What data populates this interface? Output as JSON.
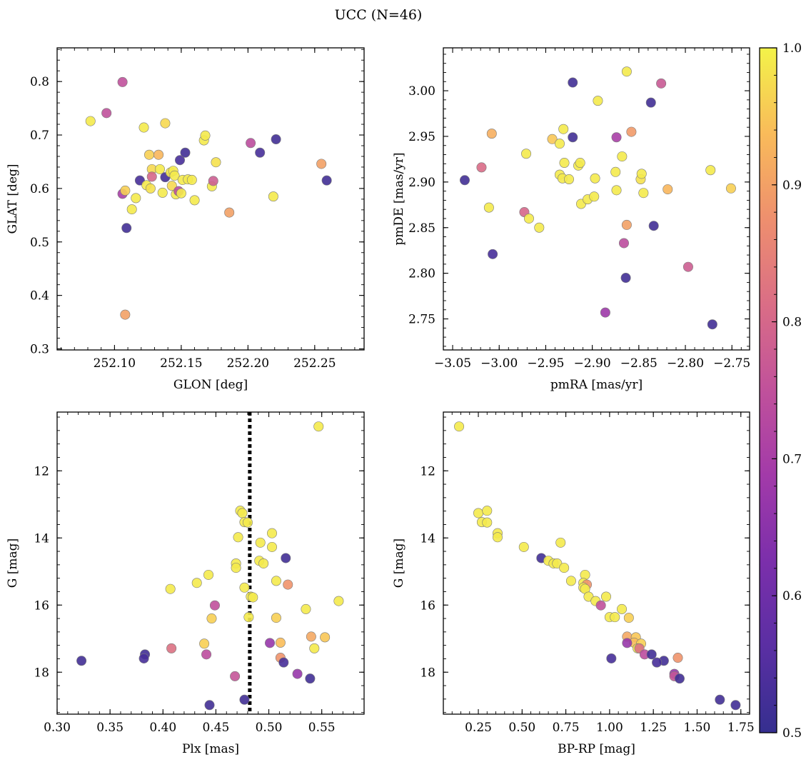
{
  "figure": {
    "title": "UCC (N=46)",
    "colorbar": {
      "range": [
        0.5,
        1.0
      ],
      "ticks": [
        "0.5",
        "0.6",
        "0.7",
        "0.8",
        "0.9",
        "1.0"
      ]
    }
  },
  "chart_data": [
    {
      "type": "scatter",
      "title": "",
      "xlabel": "GLON [deg]",
      "ylabel": "GLAT [deg]",
      "xlim": [
        252.057,
        252.287
      ],
      "ylim": [
        0.298,
        0.863
      ],
      "invert_y": false,
      "xticks": [
        252.1,
        252.15,
        252.2,
        252.25
      ],
      "xtick_labels": [
        "252.10",
        "252.15",
        "252.20",
        "252.25"
      ],
      "yticks": [
        0.3,
        0.4,
        0.5,
        0.6,
        0.7,
        0.8
      ],
      "ytick_labels": [
        "0.3",
        "0.4",
        "0.5",
        "0.6",
        "0.7",
        "0.8"
      ],
      "points": [
        {
          "x": 252.082,
          "y": 0.726,
          "c": 0.99
        },
        {
          "x": 252.094,
          "y": 0.741,
          "c": 0.75
        },
        {
          "x": 252.106,
          "y": 0.799,
          "c": 0.75
        },
        {
          "x": 252.106,
          "y": 0.59,
          "c": 0.7
        },
        {
          "x": 252.108,
          "y": 0.596,
          "c": 0.96
        },
        {
          "x": 252.108,
          "y": 0.364,
          "c": 0.9
        },
        {
          "x": 252.109,
          "y": 0.526,
          "c": 0.52
        },
        {
          "x": 252.113,
          "y": 0.561,
          "c": 0.99
        },
        {
          "x": 252.116,
          "y": 0.582,
          "c": 0.99
        },
        {
          "x": 252.119,
          "y": 0.615,
          "c": 0.53
        },
        {
          "x": 252.122,
          "y": 0.714,
          "c": 0.99
        },
        {
          "x": 252.124,
          "y": 0.606,
          "c": 0.99
        },
        {
          "x": 252.126,
          "y": 0.663,
          "c": 0.96
        },
        {
          "x": 252.127,
          "y": 0.6,
          "c": 0.98
        },
        {
          "x": 252.128,
          "y": 0.636,
          "c": 0.97
        },
        {
          "x": 252.128,
          "y": 0.622,
          "c": 0.8
        },
        {
          "x": 252.133,
          "y": 0.663,
          "c": 0.93
        },
        {
          "x": 252.134,
          "y": 0.636,
          "c": 0.99
        },
        {
          "x": 252.136,
          "y": 0.592,
          "c": 0.99
        },
        {
          "x": 252.138,
          "y": 0.722,
          "c": 0.97
        },
        {
          "x": 252.138,
          "y": 0.621,
          "c": 0.52
        },
        {
          "x": 252.142,
          "y": 0.63,
          "c": 0.99
        },
        {
          "x": 252.143,
          "y": 0.605,
          "c": 0.97
        },
        {
          "x": 252.144,
          "y": 0.633,
          "c": 0.99
        },
        {
          "x": 252.145,
          "y": 0.624,
          "c": 0.99
        },
        {
          "x": 252.146,
          "y": 0.589,
          "c": 0.99
        },
        {
          "x": 252.148,
          "y": 0.595,
          "c": 0.74
        },
        {
          "x": 252.149,
          "y": 0.653,
          "c": 0.53
        },
        {
          "x": 252.15,
          "y": 0.591,
          "c": 0.99
        },
        {
          "x": 252.151,
          "y": 0.616,
          "c": 0.99
        },
        {
          "x": 252.153,
          "y": 0.667,
          "c": 0.52
        },
        {
          "x": 252.155,
          "y": 0.617,
          "c": 0.99
        },
        {
          "x": 252.158,
          "y": 0.616,
          "c": 0.99
        },
        {
          "x": 252.16,
          "y": 0.578,
          "c": 0.99
        },
        {
          "x": 252.167,
          "y": 0.69,
          "c": 0.99
        },
        {
          "x": 252.168,
          "y": 0.699,
          "c": 0.99
        },
        {
          "x": 252.173,
          "y": 0.604,
          "c": 0.99
        },
        {
          "x": 252.174,
          "y": 0.614,
          "c": 0.78
        },
        {
          "x": 252.176,
          "y": 0.649,
          "c": 0.98
        },
        {
          "x": 252.186,
          "y": 0.555,
          "c": 0.9
        },
        {
          "x": 252.202,
          "y": 0.685,
          "c": 0.74
        },
        {
          "x": 252.209,
          "y": 0.667,
          "c": 0.53
        },
        {
          "x": 252.219,
          "y": 0.585,
          "c": 0.99
        },
        {
          "x": 252.221,
          "y": 0.692,
          "c": 0.52
        },
        {
          "x": 252.255,
          "y": 0.646,
          "c": 0.9
        },
        {
          "x": 252.259,
          "y": 0.615,
          "c": 0.52
        }
      ]
    },
    {
      "type": "scatter",
      "title": "",
      "xlabel": "pmRA [mas/yr]",
      "ylabel": "pmDE [mas/yr]",
      "xlim": [
        -3.06,
        -2.731
      ],
      "ylim": [
        2.716,
        3.047
      ],
      "invert_y": false,
      "xticks": [
        -3.05,
        -3.0,
        -2.95,
        -2.9,
        -2.85,
        -2.8,
        -2.75
      ],
      "xtick_labels": [
        "−3.05",
        "−3.00",
        "−2.95",
        "−2.90",
        "−2.85",
        "−2.80",
        "−2.75"
      ],
      "yticks": [
        2.75,
        2.8,
        2.85,
        2.9,
        2.95,
        3.0
      ],
      "ytick_labels": [
        "2.75",
        "2.80",
        "2.85",
        "2.90",
        "2.95",
        "3.00"
      ],
      "points": [
        {
          "x": -3.037,
          "y": 2.902,
          "c": 0.52
        },
        {
          "x": -3.019,
          "y": 2.916,
          "c": 0.81
        },
        {
          "x": -3.008,
          "y": 2.953,
          "c": 0.92
        },
        {
          "x": -3.011,
          "y": 2.872,
          "c": 0.99
        },
        {
          "x": -3.007,
          "y": 2.821,
          "c": 0.53
        },
        {
          "x": -2.973,
          "y": 2.867,
          "c": 0.8
        },
        {
          "x": -2.971,
          "y": 2.931,
          "c": 0.99
        },
        {
          "x": -2.968,
          "y": 2.86,
          "c": 0.99
        },
        {
          "x": -2.957,
          "y": 2.85,
          "c": 0.99
        },
        {
          "x": -2.943,
          "y": 2.947,
          "c": 0.95
        },
        {
          "x": -2.935,
          "y": 2.942,
          "c": 0.99
        },
        {
          "x": -2.935,
          "y": 2.908,
          "c": 0.99
        },
        {
          "x": -2.932,
          "y": 2.904,
          "c": 0.99
        },
        {
          "x": -2.931,
          "y": 2.958,
          "c": 0.99
        },
        {
          "x": -2.93,
          "y": 2.921,
          "c": 0.99
        },
        {
          "x": -2.925,
          "y": 2.903,
          "c": 0.99
        },
        {
          "x": -2.921,
          "y": 3.009,
          "c": 0.52
        },
        {
          "x": -2.921,
          "y": 2.949,
          "c": 0.52
        },
        {
          "x": -2.915,
          "y": 2.918,
          "c": 0.99
        },
        {
          "x": -2.913,
          "y": 2.921,
          "c": 0.99
        },
        {
          "x": -2.912,
          "y": 2.876,
          "c": 0.99
        },
        {
          "x": -2.905,
          "y": 2.881,
          "c": 0.99
        },
        {
          "x": -2.898,
          "y": 2.884,
          "c": 0.99
        },
        {
          "x": -2.897,
          "y": 2.904,
          "c": 0.99
        },
        {
          "x": -2.894,
          "y": 2.989,
          "c": 0.99
        },
        {
          "x": -2.886,
          "y": 2.757,
          "c": 0.68
        },
        {
          "x": -2.875,
          "y": 2.911,
          "c": 0.99
        },
        {
          "x": -2.874,
          "y": 2.891,
          "c": 0.99
        },
        {
          "x": -2.874,
          "y": 2.949,
          "c": 0.7
        },
        {
          "x": -2.868,
          "y": 2.928,
          "c": 0.99
        },
        {
          "x": -2.866,
          "y": 2.833,
          "c": 0.74
        },
        {
          "x": -2.864,
          "y": 2.795,
          "c": 0.52
        },
        {
          "x": -2.863,
          "y": 2.853,
          "c": 0.9
        },
        {
          "x": -2.863,
          "y": 3.021,
          "c": 0.99
        },
        {
          "x": -2.858,
          "y": 2.955,
          "c": 0.89
        },
        {
          "x": -2.848,
          "y": 2.903,
          "c": 0.98
        },
        {
          "x": -2.847,
          "y": 2.909,
          "c": 0.99
        },
        {
          "x": -2.845,
          "y": 2.888,
          "c": 0.99
        },
        {
          "x": -2.837,
          "y": 2.987,
          "c": 0.52
        },
        {
          "x": -2.834,
          "y": 2.852,
          "c": 0.52
        },
        {
          "x": -2.826,
          "y": 3.008,
          "c": 0.77
        },
        {
          "x": -2.819,
          "y": 2.892,
          "c": 0.93
        },
        {
          "x": -2.797,
          "y": 2.807,
          "c": 0.78
        },
        {
          "x": -2.773,
          "y": 2.913,
          "c": 0.99
        },
        {
          "x": -2.771,
          "y": 2.744,
          "c": 0.52
        },
        {
          "x": -2.751,
          "y": 2.893,
          "c": 0.96
        }
      ]
    },
    {
      "type": "scatter",
      "title": "",
      "xlabel": "Plx [mas]",
      "ylabel": "G [mag]",
      "xlim": [
        0.3,
        0.59
      ],
      "ylim": [
        10.25,
        19.25
      ],
      "invert_y": true,
      "xticks": [
        0.3,
        0.35,
        0.4,
        0.45,
        0.5,
        0.55
      ],
      "xtick_labels": [
        "0.30",
        "0.35",
        "0.40",
        "0.45",
        "0.50",
        "0.55"
      ],
      "yticks": [
        12,
        14,
        16,
        18
      ],
      "ytick_labels": [
        "12",
        "14",
        "16",
        "18"
      ],
      "vline": 0.482,
      "points": [
        {
          "x": 0.547,
          "y": 10.68,
          "c": 0.99
        },
        {
          "x": 0.473,
          "y": 13.19,
          "c": 0.99
        },
        {
          "x": 0.475,
          "y": 13.26,
          "c": 0.99
        },
        {
          "x": 0.477,
          "y": 13.53,
          "c": 0.99
        },
        {
          "x": 0.48,
          "y": 13.54,
          "c": 0.99
        },
        {
          "x": 0.471,
          "y": 13.98,
          "c": 0.99
        },
        {
          "x": 0.503,
          "y": 13.86,
          "c": 0.99
        },
        {
          "x": 0.492,
          "y": 14.14,
          "c": 0.99
        },
        {
          "x": 0.503,
          "y": 14.27,
          "c": 0.99
        },
        {
          "x": 0.516,
          "y": 14.6,
          "c": 0.52
        },
        {
          "x": 0.469,
          "y": 14.76,
          "c": 0.99
        },
        {
          "x": 0.469,
          "y": 14.89,
          "c": 0.99
        },
        {
          "x": 0.491,
          "y": 14.68,
          "c": 0.99
        },
        {
          "x": 0.495,
          "y": 14.76,
          "c": 0.99
        },
        {
          "x": 0.443,
          "y": 15.1,
          "c": 0.99
        },
        {
          "x": 0.432,
          "y": 15.34,
          "c": 0.99
        },
        {
          "x": 0.407,
          "y": 15.52,
          "c": 0.99
        },
        {
          "x": 0.518,
          "y": 15.39,
          "c": 0.88
        },
        {
          "x": 0.507,
          "y": 15.28,
          "c": 0.99
        },
        {
          "x": 0.477,
          "y": 15.48,
          "c": 0.99
        },
        {
          "x": 0.483,
          "y": 15.75,
          "c": 0.99
        },
        {
          "x": 0.485,
          "y": 15.77,
          "c": 0.99
        },
        {
          "x": 0.449,
          "y": 16.01,
          "c": 0.75
        },
        {
          "x": 0.446,
          "y": 16.4,
          "c": 0.96
        },
        {
          "x": 0.481,
          "y": 16.36,
          "c": 0.99
        },
        {
          "x": 0.507,
          "y": 16.38,
          "c": 0.96
        },
        {
          "x": 0.535,
          "y": 16.12,
          "c": 0.99
        },
        {
          "x": 0.566,
          "y": 15.88,
          "c": 0.99
        },
        {
          "x": 0.54,
          "y": 16.94,
          "c": 0.91
        },
        {
          "x": 0.553,
          "y": 16.96,
          "c": 0.95
        },
        {
          "x": 0.543,
          "y": 17.29,
          "c": 0.99
        },
        {
          "x": 0.439,
          "y": 17.15,
          "c": 0.96
        },
        {
          "x": 0.408,
          "y": 17.29,
          "c": 0.82
        },
        {
          "x": 0.501,
          "y": 17.13,
          "c": 0.67
        },
        {
          "x": 0.511,
          "y": 17.12,
          "c": 0.94
        },
        {
          "x": 0.441,
          "y": 17.47,
          "c": 0.74
        },
        {
          "x": 0.511,
          "y": 17.57,
          "c": 0.88
        },
        {
          "x": 0.514,
          "y": 17.71,
          "c": 0.53
        },
        {
          "x": 0.323,
          "y": 17.66,
          "c": 0.52
        },
        {
          "x": 0.383,
          "y": 17.47,
          "c": 0.52
        },
        {
          "x": 0.382,
          "y": 17.59,
          "c": 0.53
        },
        {
          "x": 0.468,
          "y": 18.12,
          "c": 0.76
        },
        {
          "x": 0.527,
          "y": 18.05,
          "c": 0.67
        },
        {
          "x": 0.539,
          "y": 18.19,
          "c": 0.52
        },
        {
          "x": 0.477,
          "y": 18.82,
          "c": 0.52
        },
        {
          "x": 0.444,
          "y": 18.98,
          "c": 0.52
        }
      ]
    },
    {
      "type": "scatter",
      "title": "",
      "xlabel": "BP-RP [mag]",
      "ylabel": "G [mag]",
      "xlim": [
        0.05,
        1.8
      ],
      "ylim": [
        10.25,
        19.25
      ],
      "invert_y": true,
      "xticks": [
        0.25,
        0.5,
        0.75,
        1.0,
        1.25,
        1.5,
        1.75
      ],
      "xtick_labels": [
        "0.25",
        "0.50",
        "0.75",
        "1.00",
        "1.25",
        "1.50",
        "1.75"
      ],
      "yticks": [
        12,
        14,
        16,
        18
      ],
      "ytick_labels": [
        "12",
        "14",
        "16",
        "18"
      ],
      "points": [
        {
          "x": 0.14,
          "y": 10.68,
          "c": 0.99
        },
        {
          "x": 0.25,
          "y": 13.26,
          "c": 0.99
        },
        {
          "x": 0.3,
          "y": 13.19,
          "c": 0.99
        },
        {
          "x": 0.27,
          "y": 13.53,
          "c": 0.99
        },
        {
          "x": 0.3,
          "y": 13.54,
          "c": 0.99
        },
        {
          "x": 0.36,
          "y": 13.86,
          "c": 0.99
        },
        {
          "x": 0.36,
          "y": 13.98,
          "c": 0.99
        },
        {
          "x": 0.51,
          "y": 14.27,
          "c": 0.99
        },
        {
          "x": 0.72,
          "y": 14.14,
          "c": 0.99
        },
        {
          "x": 0.61,
          "y": 14.6,
          "c": 0.52
        },
        {
          "x": 0.65,
          "y": 14.68,
          "c": 0.99
        },
        {
          "x": 0.68,
          "y": 14.76,
          "c": 0.99
        },
        {
          "x": 0.7,
          "y": 14.76,
          "c": 0.99
        },
        {
          "x": 0.74,
          "y": 14.89,
          "c": 0.99
        },
        {
          "x": 0.86,
          "y": 15.1,
          "c": 0.99
        },
        {
          "x": 0.78,
          "y": 15.28,
          "c": 0.99
        },
        {
          "x": 0.85,
          "y": 15.34,
          "c": 0.99
        },
        {
          "x": 0.87,
          "y": 15.39,
          "c": 0.88
        },
        {
          "x": 0.85,
          "y": 15.48,
          "c": 0.99
        },
        {
          "x": 0.86,
          "y": 15.52,
          "c": 0.99
        },
        {
          "x": 0.88,
          "y": 15.75,
          "c": 0.99
        },
        {
          "x": 0.98,
          "y": 15.75,
          "c": 0.99
        },
        {
          "x": 0.92,
          "y": 15.88,
          "c": 0.99
        },
        {
          "x": 0.95,
          "y": 16.01,
          "c": 0.75
        },
        {
          "x": 1.07,
          "y": 16.12,
          "c": 0.99
        },
        {
          "x": 1.0,
          "y": 16.36,
          "c": 0.99
        },
        {
          "x": 1.03,
          "y": 16.36,
          "c": 0.99
        },
        {
          "x": 1.11,
          "y": 16.38,
          "c": 0.96
        },
        {
          "x": 1.1,
          "y": 16.94,
          "c": 0.91
        },
        {
          "x": 1.15,
          "y": 16.96,
          "c": 0.95
        },
        {
          "x": 1.14,
          "y": 17.12,
          "c": 0.94
        },
        {
          "x": 1.1,
          "y": 17.13,
          "c": 0.67
        },
        {
          "x": 1.18,
          "y": 17.15,
          "c": 0.96
        },
        {
          "x": 1.16,
          "y": 17.29,
          "c": 0.99
        },
        {
          "x": 1.17,
          "y": 17.29,
          "c": 0.82
        },
        {
          "x": 1.2,
          "y": 17.47,
          "c": 0.74
        },
        {
          "x": 1.24,
          "y": 17.47,
          "c": 0.52
        },
        {
          "x": 1.01,
          "y": 17.59,
          "c": 0.53
        },
        {
          "x": 1.39,
          "y": 17.57,
          "c": 0.88
        },
        {
          "x": 1.31,
          "y": 17.66,
          "c": 0.52
        },
        {
          "x": 1.27,
          "y": 17.71,
          "c": 0.53
        },
        {
          "x": 1.37,
          "y": 18.05,
          "c": 0.67
        },
        {
          "x": 1.37,
          "y": 18.12,
          "c": 0.76
        },
        {
          "x": 1.4,
          "y": 18.19,
          "c": 0.52
        },
        {
          "x": 1.63,
          "y": 18.82,
          "c": 0.52
        },
        {
          "x": 1.72,
          "y": 18.98,
          "c": 0.52
        }
      ]
    }
  ]
}
